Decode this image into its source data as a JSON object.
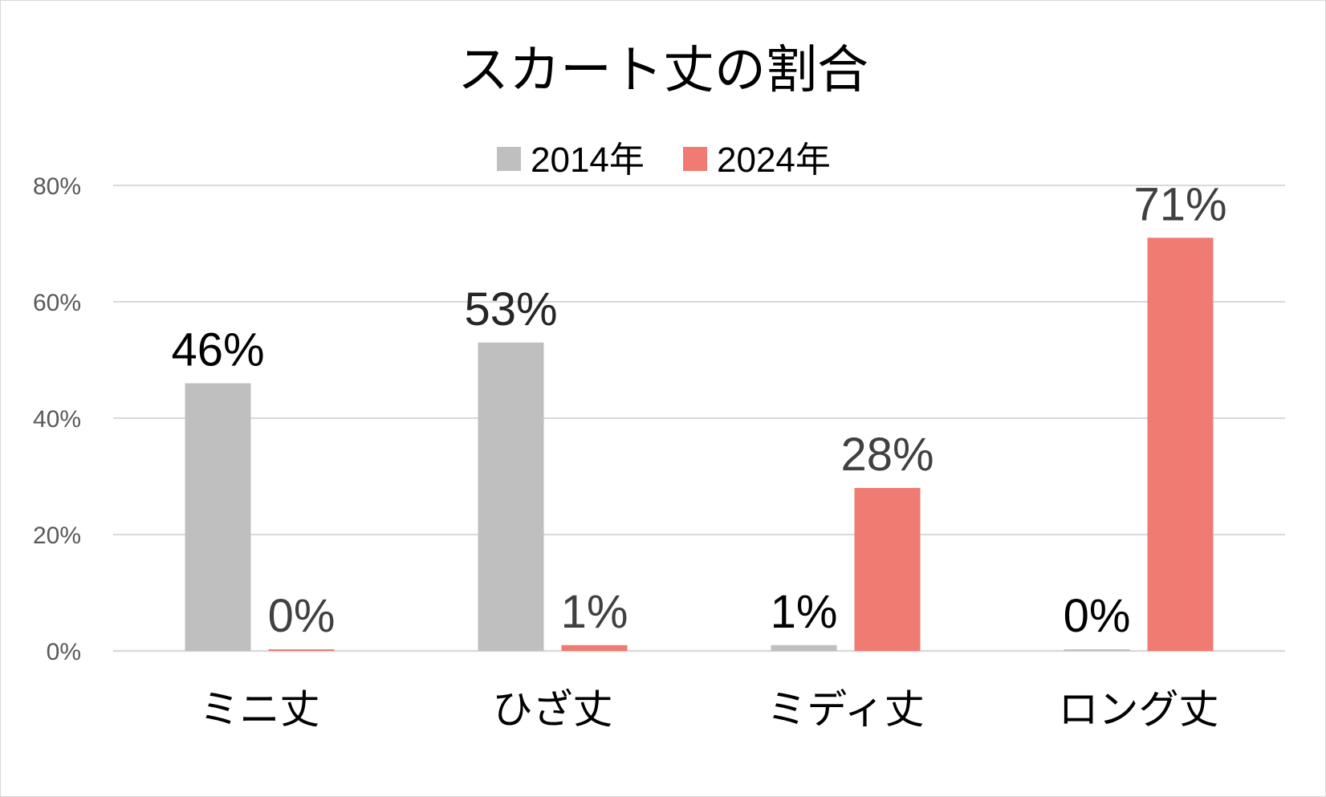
{
  "chart_data": {
    "type": "bar",
    "title": "スカート丈の割合",
    "categories": [
      "ミニ丈",
      "ひざ丈",
      "ミディ丈",
      "ロング丈"
    ],
    "series": [
      {
        "name": "2014年",
        "color": "#bfbfbf",
        "values": [
          46,
          53,
          1,
          0
        ],
        "labels": [
          "46%",
          "53%",
          "1%",
          "0%"
        ]
      },
      {
        "name": "2024年",
        "color": "#ef7b72",
        "values": [
          0,
          1,
          28,
          71
        ],
        "labels": [
          "0%",
          "1%",
          "28%",
          "71%"
        ]
      }
    ],
    "y_ticks": [
      "0%",
      "20%",
      "40%",
      "60%",
      "80%"
    ],
    "ylim": [
      0,
      80
    ],
    "grid": true,
    "legend": "top-center"
  }
}
